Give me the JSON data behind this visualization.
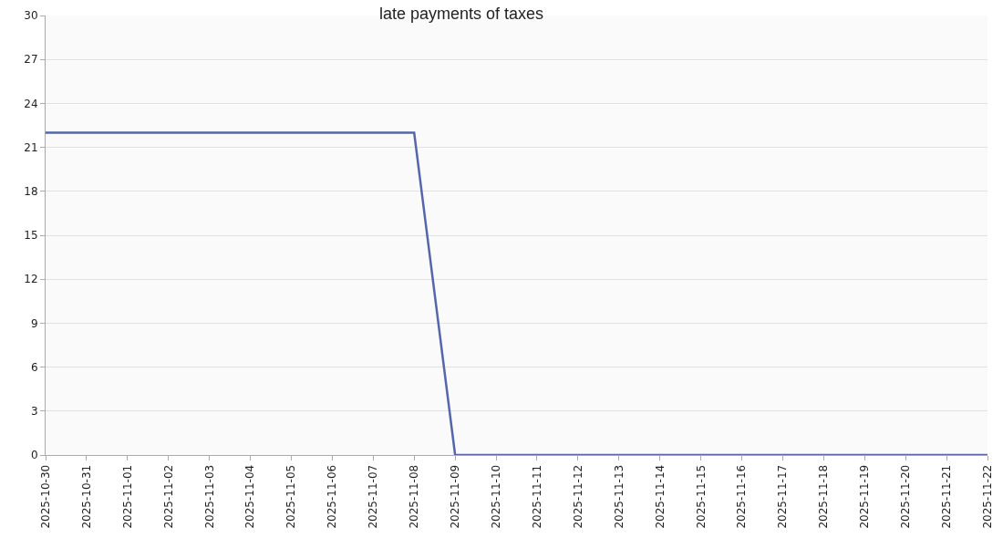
{
  "chart_data": {
    "type": "line",
    "title": "late payments of taxes",
    "x": [
      "2025-10-30",
      "2025-10-31",
      "2025-11-01",
      "2025-11-02",
      "2025-11-03",
      "2025-11-04",
      "2025-11-05",
      "2025-11-06",
      "2025-11-07",
      "2025-11-08",
      "2025-11-09",
      "2025-11-10",
      "2025-11-11",
      "2025-11-12",
      "2025-11-13",
      "2025-11-14",
      "2025-11-15",
      "2025-11-16",
      "2025-11-17",
      "2025-11-18",
      "2025-11-19",
      "2025-11-20",
      "2025-11-21",
      "2025-11-22"
    ],
    "series": [
      {
        "color": "#5566aa",
        "values": [
          22,
          22,
          22,
          22,
          22,
          22,
          22,
          22,
          22,
          22,
          0,
          0,
          0,
          0,
          0,
          0,
          0,
          0,
          0,
          0,
          0,
          0,
          0,
          0
        ]
      }
    ],
    "xlim": [
      "2025-10-30",
      "2025-11-22"
    ],
    "xticks": [
      "2025-10-30",
      "2025-10-31",
      "2025-11-01",
      "2025-11-02",
      "2025-11-03",
      "2025-11-04",
      "2025-11-05",
      "2025-11-06",
      "2025-11-07",
      "2025-11-08",
      "2025-11-09",
      "2025-11-10",
      "2025-11-11",
      "2025-11-12",
      "2025-11-13",
      "2025-11-14",
      "2025-11-15",
      "2025-11-16",
      "2025-11-17",
      "2025-11-18",
      "2025-11-19",
      "2025-11-20",
      "2025-11-21",
      "2025-11-22"
    ],
    "ylim": [
      0,
      30
    ],
    "yticks": [
      0,
      3,
      6,
      9,
      12,
      15,
      18,
      21,
      24,
      27,
      30
    ],
    "grid": "y",
    "marker": "none",
    "line_style": "solid"
  }
}
